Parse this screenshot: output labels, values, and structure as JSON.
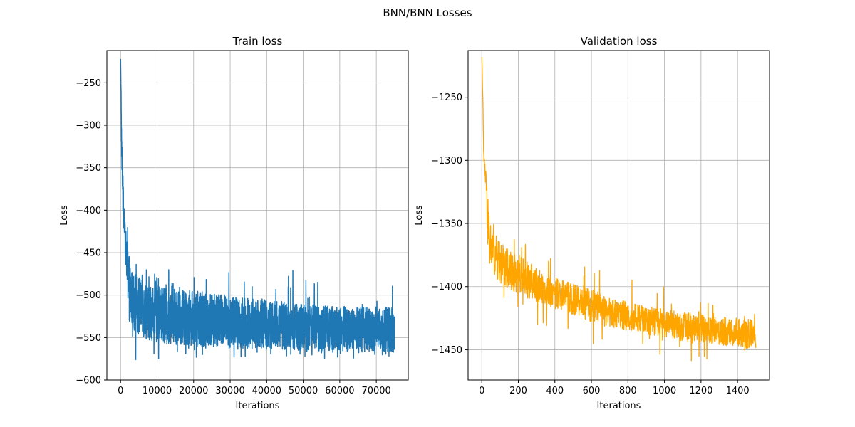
{
  "figure": {
    "title": "BNN/BNN Losses"
  },
  "chart_data": [
    {
      "type": "line",
      "title": "Train loss",
      "xlabel": "Iterations",
      "ylabel": "Loss",
      "xlim": [
        -3750,
        78750
      ],
      "ylim": [
        -600,
        -212
      ],
      "xticks": [
        0,
        10000,
        20000,
        30000,
        40000,
        50000,
        60000,
        70000
      ],
      "xtick_labels": [
        "0",
        "10000",
        "20000",
        "30000",
        "40000",
        "50000",
        "60000",
        "70000"
      ],
      "yticks": [
        -600,
        -550,
        -500,
        -450,
        -400,
        -350,
        -300,
        -250
      ],
      "ytick_labels": [
        "−600",
        "−550",
        "−500",
        "−450",
        "−400",
        "−350",
        "−300",
        "−250"
      ],
      "grid": true,
      "series": [
        {
          "color": "#1f77b4",
          "x": [
            0,
            100,
            250,
            500,
            800,
            1200,
            1600,
            2000,
            2500,
            3000,
            4000,
            5000,
            6000,
            7000,
            8000,
            10000,
            12000,
            15000,
            20000,
            25000,
            30000,
            35000,
            40000,
            45000,
            50000,
            55000,
            60000,
            65000,
            70000,
            75000
          ],
          "upper": [
            -222,
            -238,
            -300,
            -335,
            -380,
            -412,
            -430,
            -440,
            -460,
            -470,
            -475,
            -478,
            -482,
            -485,
            -486,
            -488,
            -490,
            -492,
            -495,
            -497,
            -500,
            -503,
            -505,
            -508,
            -510,
            -512,
            -513,
            -514,
            -514,
            -515
          ],
          "lower": [
            -222,
            -260,
            -330,
            -390,
            -420,
            -450,
            -480,
            -525,
            -532,
            -537,
            -543,
            -547,
            -550,
            -552,
            -553,
            -555,
            -557,
            -558,
            -560,
            -561,
            -562,
            -563,
            -564,
            -564,
            -565,
            -566,
            -566,
            -567,
            -567,
            -568
          ],
          "peak_upper": [
            -222,
            -238,
            -300,
            -340,
            -380,
            -415,
            -420,
            -413,
            -437,
            -455,
            -460,
            -460,
            -465,
            -470
          ],
          "peak_lower": [
            -222,
            -260,
            -350,
            -420,
            -460,
            -520,
            -560,
            -575,
            -580,
            -582,
            -578,
            -580,
            -582,
            -575
          ]
        }
      ]
    },
    {
      "type": "line",
      "title": "Validation loss",
      "xlabel": "Iterations",
      "ylabel": "Loss",
      "xlim": [
        -75,
        1575
      ],
      "ylim": [
        -1474,
        -1213
      ],
      "xticks": [
        0,
        200,
        400,
        600,
        800,
        1000,
        1200,
        1400
      ],
      "xtick_labels": [
        "0",
        "200",
        "400",
        "600",
        "800",
        "1000",
        "1200",
        "1400"
      ],
      "yticks": [
        -1450,
        -1400,
        -1350,
        -1300,
        -1250
      ],
      "ytick_labels": [
        "−1450",
        "−1400",
        "−1350",
        "−1300",
        "−1250"
      ],
      "grid": true,
      "series": [
        {
          "color": "#ffa500",
          "x": [
            0,
            5,
            10,
            20,
            30,
            40,
            60,
            80,
            100,
            150,
            200,
            300,
            400,
            500,
            600,
            700,
            800,
            900,
            1000,
            1100,
            1200,
            1300,
            1400,
            1500
          ],
          "upper": [
            -1218,
            -1240,
            -1290,
            -1305,
            -1320,
            -1345,
            -1355,
            -1360,
            -1365,
            -1370,
            -1375,
            -1385,
            -1392,
            -1398,
            -1402,
            -1408,
            -1412,
            -1415,
            -1418,
            -1420,
            -1422,
            -1424,
            -1425,
            -1425
          ],
          "lower": [
            -1218,
            -1250,
            -1300,
            -1320,
            -1360,
            -1385,
            -1390,
            -1395,
            -1398,
            -1402,
            -1406,
            -1412,
            -1418,
            -1422,
            -1428,
            -1432,
            -1435,
            -1438,
            -1440,
            -1442,
            -1444,
            -1446,
            -1448,
            -1450
          ],
          "peak_upper": [
            -1218,
            -1240,
            -1295,
            -1318,
            -1340,
            -1345,
            -1342,
            -1350,
            -1355,
            -1356,
            -1360,
            -1368,
            -1372,
            -1380,
            -1385,
            -1388,
            -1392,
            -1395,
            -1400,
            -1405,
            -1408,
            -1410,
            -1408,
            -1422
          ],
          "peak_lower": [
            -1218,
            -1250,
            -1305,
            -1330,
            -1380,
            -1392,
            -1395,
            -1418,
            -1415,
            -1420,
            -1428,
            -1430,
            -1432,
            -1440,
            -1445,
            -1448,
            -1452,
            -1455,
            -1455,
            -1458,
            -1462,
            -1458,
            -1458,
            -1455
          ]
        }
      ]
    }
  ]
}
